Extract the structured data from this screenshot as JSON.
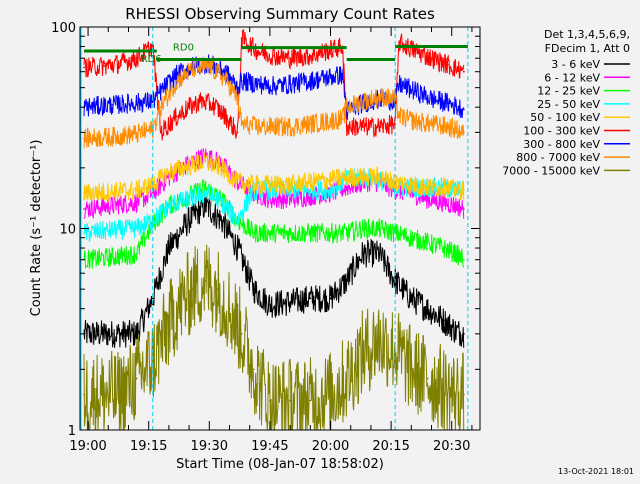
{
  "chart_data": {
    "type": "line",
    "title": "RHESSI Observing Summary Count Rates",
    "xlabel": "Start Time (08-Jan-07 18:58:02)",
    "ylabel": "Count Rate (s⁻¹ detector⁻¹)",
    "yscale": "log",
    "ylim": [
      1,
      100
    ],
    "y_tick_labels": [
      "1",
      "10",
      "100"
    ],
    "xlim": [
      "18:58",
      "20:37"
    ],
    "x_ticks": [
      "19:00",
      "19:15",
      "19:30",
      "19:45",
      "20:00",
      "20:15",
      "20:30"
    ],
    "grid": false,
    "legend_placement": "right",
    "legend_header": [
      "Det 1,3,4,5,6,9,",
      "FDecim 1, Att 0"
    ],
    "footer_date": "13-Oct-2021 18:01",
    "background": "#f2f2f2",
    "annotations": [
      {
        "text": "RD0",
        "time": "19:21",
        "y": 80,
        "color": "#008000"
      },
      {
        "text": "RD6",
        "time": "19:13",
        "y": 70,
        "color": "#008000"
      }
    ],
    "cyan_boundary_times": [
      "19:16",
      "20:16",
      "20:34"
    ],
    "state_line": {
      "color": "#008000",
      "segments": [
        {
          "t0": "18:59",
          "t1": "19:17",
          "y": 76
        },
        {
          "t0": "19:17",
          "t1": "19:38",
          "y": 69
        },
        {
          "t0": "19:38",
          "t1": "20:04",
          "y": 79
        },
        {
          "t0": "20:04",
          "t1": "20:16",
          "y": 69
        },
        {
          "t0": "20:16",
          "t1": "20:34",
          "y": 80
        }
      ]
    },
    "series": [
      {
        "name": "3 - 6 keV",
        "color": "#000000",
        "x": [
          "18:59",
          "19:06",
          "19:12",
          "19:16",
          "19:20",
          "19:25",
          "19:29",
          "19:33",
          "19:37",
          "19:41",
          "19:45",
          "19:50",
          "19:55",
          "20:00",
          "20:04",
          "20:08",
          "20:12",
          "20:16",
          "20:20",
          "20:24",
          "20:28",
          "20:31",
          "20:33"
        ],
        "y": [
          3.0,
          3.0,
          3.0,
          4.5,
          8.0,
          11.0,
          13.0,
          11.0,
          8.0,
          5.0,
          4.2,
          4.3,
          4.5,
          4.5,
          5.5,
          7.5,
          7.5,
          5.5,
          4.5,
          4.0,
          3.5,
          3.1,
          3.0
        ]
      },
      {
        "name": "6 - 12 keV",
        "color": "#ff00ff",
        "x": [
          "18:59",
          "19:06",
          "19:12",
          "19:16",
          "19:20",
          "19:25",
          "19:29",
          "19:33",
          "19:37",
          "19:41",
          "19:45",
          "19:50",
          "19:55",
          "20:00",
          "20:04",
          "20:08",
          "20:12",
          "20:16",
          "20:20",
          "20:24",
          "20:28",
          "20:31",
          "20:33"
        ],
        "y": [
          12.5,
          13.0,
          13.5,
          15.0,
          18.0,
          21.0,
          23.0,
          21.0,
          17.0,
          15.0,
          14.0,
          14.0,
          14.5,
          15.0,
          16.0,
          17.0,
          17.0,
          15.5,
          15.0,
          14.0,
          13.5,
          13.0,
          12.5
        ]
      },
      {
        "name": "12 - 25 keV",
        "color": "#00ff00",
        "x": [
          "18:59",
          "19:06",
          "19:12",
          "19:16",
          "19:20",
          "19:25",
          "19:29",
          "19:33",
          "19:37",
          "19:41",
          "19:45",
          "19:50",
          "19:55",
          "20:00",
          "20:04",
          "20:08",
          "20:12",
          "20:16",
          "20:20",
          "20:24",
          "20:28",
          "20:31",
          "20:33"
        ],
        "y": [
          7.0,
          7.2,
          7.5,
          10.5,
          13.0,
          14.5,
          16.0,
          14.0,
          11.0,
          9.5,
          9.5,
          9.5,
          9.5,
          9.5,
          9.5,
          10.0,
          10.0,
          9.5,
          9.0,
          8.5,
          8.0,
          7.5,
          7.0
        ]
      },
      {
        "name": "25 - 50 keV",
        "color": "#00ffff",
        "x": [
          "18:59",
          "19:06",
          "19:12",
          "19:16",
          "19:20",
          "19:25",
          "19:29",
          "19:33",
          "19:37",
          "19:41",
          "19:45",
          "19:50",
          "19:55",
          "20:00",
          "20:04",
          "20:08",
          "20:12",
          "20:16",
          "20:20",
          "20:24",
          "20:28",
          "20:31",
          "20:33"
        ],
        "y": [
          9.5,
          9.8,
          10.0,
          11.0,
          13.0,
          14.0,
          15.0,
          13.5,
          11.0,
          15.5,
          15.5,
          15.5,
          15.5,
          15.5,
          17.5,
          18.0,
          17.5,
          16.0,
          16.0,
          16.0,
          16.0,
          15.5,
          15.5
        ]
      },
      {
        "name": "50 - 100 keV",
        "color": "#ffc800",
        "x": [
          "18:59",
          "19:06",
          "19:12",
          "19:16",
          "19:20",
          "19:25",
          "19:29",
          "19:33",
          "19:37",
          "19:41",
          "19:45",
          "19:50",
          "19:55",
          "20:00",
          "20:04",
          "20:08",
          "20:12",
          "20:16",
          "20:20",
          "20:24",
          "20:28",
          "20:31",
          "20:33"
        ],
        "y": [
          15.0,
          15.2,
          15.5,
          16.5,
          19.0,
          20.5,
          21.5,
          20.0,
          17.0,
          16.5,
          16.5,
          16.5,
          17.0,
          17.5,
          18.0,
          18.0,
          18.0,
          17.0,
          16.5,
          16.0,
          16.0,
          15.5,
          15.5
        ]
      },
      {
        "name": "100 - 300 keV",
        "color": "#ff0000",
        "x": [
          "18:59",
          "19:04",
          "19:08",
          "19:12",
          "19:16",
          "19:18",
          "19:22",
          "19:25",
          "19:28",
          "19:31",
          "19:34",
          "19:37",
          "19:38",
          "19:42",
          "19:46",
          "19:50",
          "19:55",
          "19:59",
          "20:03",
          "20:04",
          "20:08",
          "20:12",
          "20:16",
          "20:17",
          "20:21",
          "20:25",
          "20:29",
          "20:33"
        ],
        "y": [
          63,
          64,
          66,
          70,
          80,
          30,
          36,
          40,
          43,
          41,
          36,
          30,
          88,
          76,
          72,
          70,
          72,
          76,
          80,
          32,
          32,
          32,
          33,
          84,
          76,
          70,
          65,
          60
        ]
      },
      {
        "name": "300 - 800 keV",
        "color": "#0000ff",
        "x": [
          "18:59",
          "19:06",
          "19:12",
          "19:16",
          "19:18",
          "19:22",
          "19:26",
          "19:30",
          "19:34",
          "19:37",
          "19:38",
          "19:42",
          "19:46",
          "19:50",
          "19:55",
          "19:59",
          "20:03",
          "20:04",
          "20:07",
          "20:10",
          "20:13",
          "20:16",
          "20:17",
          "20:21",
          "20:25",
          "20:29",
          "20:33"
        ],
        "y": [
          40,
          41,
          42,
          43,
          48,
          58,
          64,
          66,
          60,
          50,
          54,
          52,
          51,
          52,
          54,
          56,
          58,
          38,
          41,
          43,
          44,
          43,
          52,
          48,
          44,
          42,
          39
        ]
      },
      {
        "name": "800 - 7000 keV",
        "color": "#ff8c00",
        "x": [
          "18:59",
          "19:06",
          "19:12",
          "19:16",
          "19:18",
          "19:22",
          "19:26",
          "19:30",
          "19:34",
          "19:37",
          "19:38",
          "19:42",
          "19:46",
          "19:50",
          "19:55",
          "19:59",
          "20:03",
          "20:04",
          "20:07",
          "20:10",
          "20:13",
          "20:16",
          "20:17",
          "20:21",
          "20:25",
          "20:29",
          "20:33"
        ],
        "y": [
          28,
          28.5,
          29.5,
          31,
          40,
          54,
          62,
          64,
          55,
          44,
          33,
          32,
          32,
          32,
          33,
          34,
          35,
          40,
          42,
          44,
          45,
          44,
          36,
          34,
          33,
          32,
          30
        ]
      },
      {
        "name": "7000 - 15000 keV",
        "color": "#808000",
        "x": [
          "18:59",
          "19:04",
          "19:08",
          "19:12",
          "19:16",
          "19:19",
          "19:22",
          "19:26",
          "19:29",
          "19:32",
          "19:35",
          "19:38",
          "19:41",
          "19:45",
          "19:50",
          "19:55",
          "20:00",
          "20:04",
          "20:08",
          "20:12",
          "20:16",
          "20:20",
          "20:24",
          "20:28",
          "20:31",
          "20:33"
        ],
        "y": [
          1.5,
          1.5,
          1.5,
          1.8,
          2.2,
          3.0,
          4.0,
          5.0,
          5.5,
          5.0,
          4.0,
          3.0,
          2.0,
          1.4,
          1.4,
          1.4,
          1.5,
          1.8,
          2.4,
          2.8,
          2.5,
          2.0,
          1.8,
          1.6,
          1.5,
          1.5
        ]
      }
    ]
  }
}
